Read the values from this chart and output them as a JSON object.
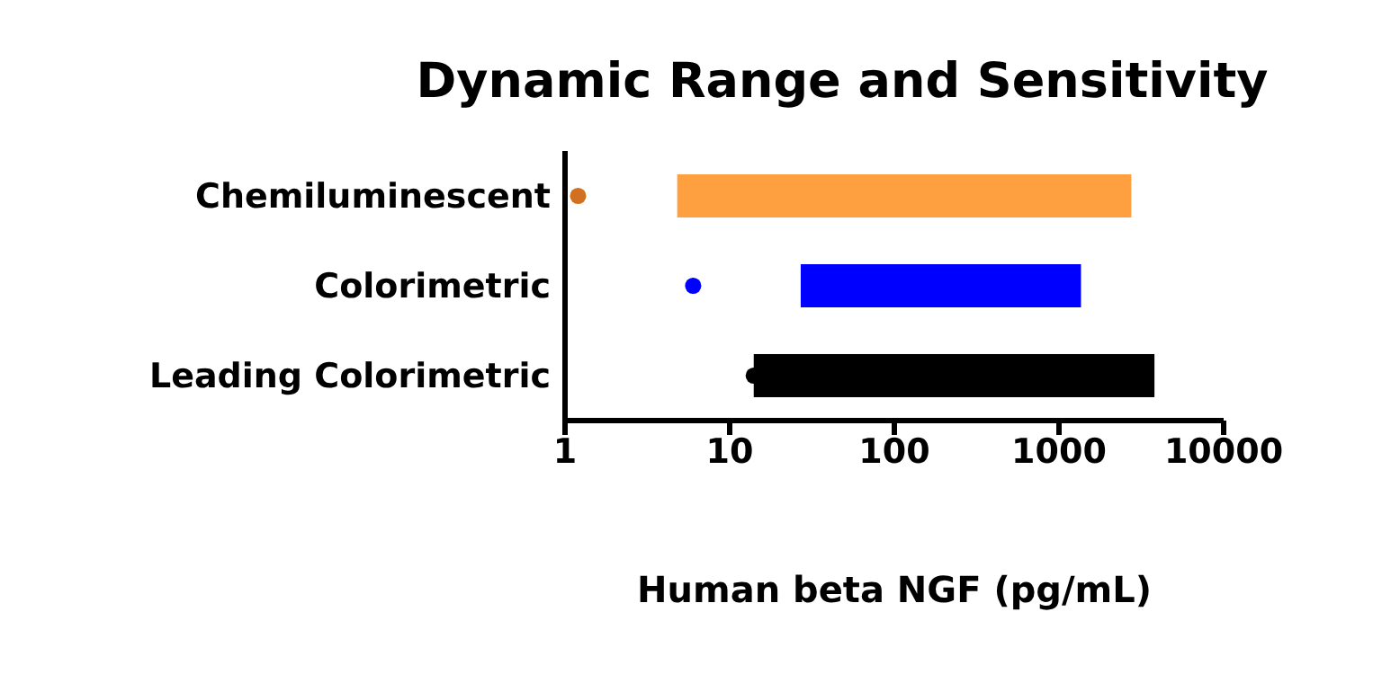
{
  "chart_data": {
    "type": "bar",
    "orientation": "horizontal",
    "title": "Dynamic Range and Sensitivity",
    "xlabel": "Human beta NGF (pg/mL)",
    "categories": [
      "Chemiluminescent",
      "Colorimetric",
      "Leading Colorimetric"
    ],
    "log": "x",
    "xlim": [
      1,
      10000
    ],
    "xticks": [
      1,
      10,
      100,
      1000,
      10000
    ],
    "series": [
      {
        "colors": [
          "#ffa040",
          "#0000ff",
          "#000000"
        ],
        "base": [
          4.8,
          27,
          14
        ],
        "values": [
          2745,
          1333,
          3786
        ]
      },
      {
        "type": "scatter",
        "colors": [
          "#d07020",
          "#0000ff",
          "#000000"
        ],
        "x": [
          "Chemiluminescent",
          "Colorimetric",
          "Leading Colorimetric"
        ],
        "values": [
          1.2,
          6,
          14
        ],
        "marker": "circle"
      }
    ]
  }
}
